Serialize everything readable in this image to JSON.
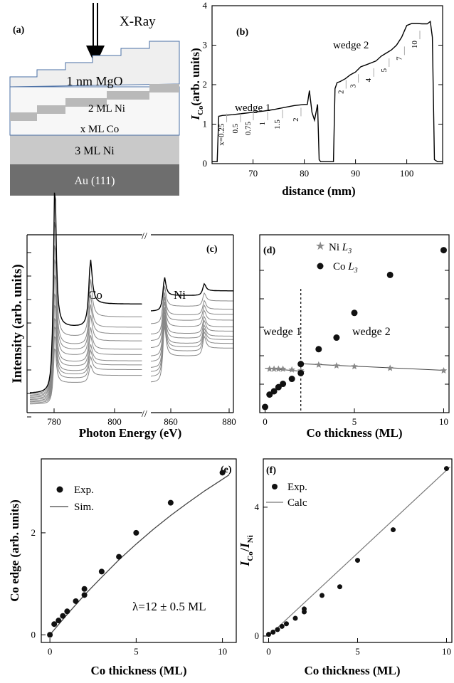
{
  "colors": {
    "layer_mgo": "#f0f0f0",
    "layer_ni": "#c9c9c9",
    "layer_co": "#f7f7f7",
    "layer_au": "#6e6e6e",
    "layer_border": "#4a6fa5",
    "curve": "#000000",
    "gray_curves": "#888888",
    "fit": "#444444"
  },
  "panel_a": {
    "label": "(a)",
    "xray_label": "X-Ray",
    "layers": {
      "mgo": "1 nm MgO",
      "ni_top": "2 ML Ni",
      "co": "x ML Co",
      "ni_bottom": "3 ML Ni",
      "au": "Au (111)"
    }
  },
  "chart_data": [
    {
      "id": "b",
      "type": "line",
      "panel_label": "(b)",
      "xlabel": "distance (mm)",
      "ylabel": "I_Co(arb. units)",
      "xlim": [
        62,
        107
      ],
      "ylim": [
        0,
        4
      ],
      "xticks": [
        "70",
        "80",
        "90",
        "100"
      ],
      "yticks": [
        "0",
        "1",
        "2",
        "3",
        "4"
      ],
      "annotations": [
        "wedge 1",
        "wedge 2"
      ],
      "step_labels_wedge1": [
        "x=0.25",
        "0.5",
        "0.75",
        "1",
        "1.5",
        "2"
      ],
      "step_labels_wedge2": [
        "2",
        "3",
        "4",
        "5",
        "7",
        "10"
      ],
      "series": [
        {
          "x": [
            62.0,
            63.0,
            63.3,
            64.0,
            66.0,
            68.0,
            70.0,
            72.0,
            74.0,
            76.0,
            78.0,
            80.0,
            80.6,
            81.0,
            81.5,
            82.0,
            82.6,
            82.9,
            83.2,
            85.7,
            86.0,
            86.4,
            87.0,
            88.0,
            89.0,
            90.0,
            91.0,
            92.0,
            93.0,
            94.0,
            95.0,
            96.0,
            97.0,
            98.0,
            99.0,
            100.0,
            101.0,
            102.0,
            103.0,
            104.0,
            104.6,
            105.0,
            105.4,
            106.0,
            107.0
          ],
          "y": [
            0.05,
            0.05,
            1.2,
            1.22,
            1.24,
            1.27,
            1.3,
            1.33,
            1.37,
            1.42,
            1.47,
            1.5,
            1.5,
            1.85,
            1.3,
            1.1,
            1.5,
            0.1,
            0.05,
            0.05,
            1.9,
            2.05,
            2.08,
            2.15,
            2.25,
            2.32,
            2.45,
            2.5,
            2.55,
            2.6,
            2.72,
            2.8,
            2.88,
            3.0,
            3.2,
            3.5,
            3.55,
            3.55,
            3.54,
            3.54,
            3.6,
            3.2,
            0.1,
            0.05,
            0.05
          ]
        }
      ]
    },
    {
      "id": "c",
      "type": "line",
      "panel_label": "(c)",
      "xlabel": "Photon Energy (eV)",
      "ylabel": "Intensity (arb. units)",
      "xticks": [
        "780",
        "800",
        "860",
        "880"
      ],
      "annotations": [
        "Co",
        "Ni"
      ],
      "note": "Series of XAS spectra, axis break between 810 and 840 eV; curve heights follow Co thickness",
      "co_edge_height_scale": [
        0.25,
        0.5,
        0.75,
        1.0,
        1.5,
        2.0,
        3.0,
        4.0,
        5.0,
        7.0,
        10.0
      ]
    },
    {
      "id": "d",
      "type": "scatter",
      "panel_label": "(d)",
      "xlabel": "Co thickness (ML)",
      "xlim": [
        -0.3,
        10.3
      ],
      "ylim": [
        0,
        1.0
      ],
      "xticks": [
        "0",
        "5",
        "10"
      ],
      "annotations": [
        "wedge 1",
        "wedge 2"
      ],
      "vline_x": 2,
      "series": [
        {
          "name": "Ni L3",
          "marker": "star",
          "x": [
            0.25,
            0.5,
            0.75,
            1.0,
            1.5,
            2.0,
            2.0,
            3.0,
            4.0,
            5.0,
            7.0,
            10.0
          ],
          "y": [
            0.23,
            0.23,
            0.23,
            0.23,
            0.225,
            0.22,
            0.26,
            0.255,
            0.25,
            0.245,
            0.235,
            0.22
          ]
        },
        {
          "name": "Co L3",
          "marker": "ball",
          "x": [
            0.0,
            0.25,
            0.5,
            0.75,
            1.0,
            1.5,
            2.0,
            2.0,
            3.0,
            4.0,
            5.0,
            7.0,
            10.0
          ],
          "y": [
            0.0,
            0.075,
            0.095,
            0.12,
            0.14,
            0.17,
            0.205,
            0.26,
            0.35,
            0.42,
            0.57,
            0.8,
            0.95
          ]
        }
      ]
    },
    {
      "id": "e",
      "type": "scatter",
      "panel_label": "(e)",
      "xlabel": "Co thickness (ML)",
      "ylabel": "Co edge (arb. units)",
      "xlim": [
        -0.5,
        10.8
      ],
      "ylim": [
        -0.15,
        3.45
      ],
      "xticks": [
        "0",
        "5",
        "10"
      ],
      "yticks": [
        "0",
        "2"
      ],
      "annotation": "λ=12 ± 0.5 ML",
      "series": [
        {
          "name": "Exp.",
          "marker": "ball",
          "x": [
            0.0,
            0.25,
            0.5,
            0.75,
            1.0,
            1.5,
            2.0,
            2.0,
            3.0,
            4.0,
            5.0,
            7.0,
            10.0
          ],
          "y": [
            0.0,
            0.21,
            0.28,
            0.37,
            0.46,
            0.66,
            0.78,
            0.9,
            1.24,
            1.53,
            2.0,
            2.59,
            3.18
          ]
        },
        {
          "name": "Sim.",
          "marker": "line",
          "x": [
            0.0,
            1.0,
            2.0,
            3.0,
            4.0,
            5.0,
            6.0,
            7.0,
            8.0,
            9.0,
            10.0,
            10.4
          ],
          "y": [
            0.0,
            0.4,
            0.78,
            1.13,
            1.47,
            1.78,
            2.07,
            2.34,
            2.59,
            2.83,
            3.05,
            3.14
          ]
        }
      ]
    },
    {
      "id": "f",
      "type": "scatter",
      "panel_label": "(f)",
      "xlabel": "Co thickness (ML)",
      "ylabel": "I_Co/I_Ni",
      "xlim": [
        -0.3,
        10.3
      ],
      "ylim": [
        -0.2,
        5.5
      ],
      "xticks": [
        "0",
        "5",
        "10"
      ],
      "yticks": [
        "0",
        "4"
      ],
      "series": [
        {
          "name": "Exp.",
          "marker": "ball",
          "x": [
            0.0,
            0.25,
            0.5,
            0.75,
            1.0,
            1.5,
            2.0,
            2.0,
            3.0,
            4.0,
            5.0,
            7.0,
            10.0
          ],
          "y": [
            0.05,
            0.12,
            0.2,
            0.3,
            0.38,
            0.55,
            0.75,
            0.84,
            1.26,
            1.53,
            2.35,
            3.3,
            5.2
          ]
        },
        {
          "name": "Calc",
          "marker": "line",
          "x": [
            0.0,
            10.2
          ],
          "y": [
            0.0,
            5.25
          ]
        }
      ]
    }
  ]
}
